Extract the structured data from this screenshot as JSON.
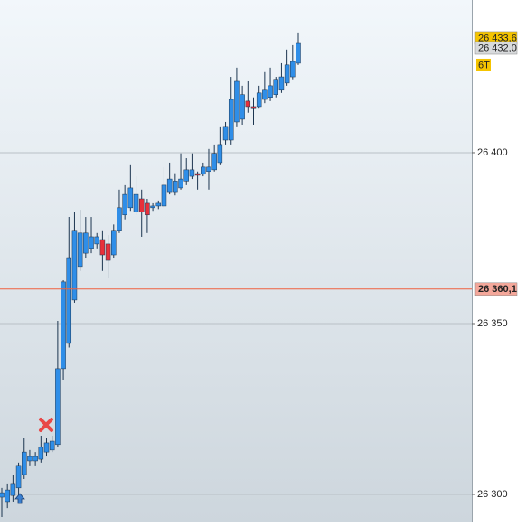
{
  "chart_data": {
    "type": "candlestick",
    "up_color": "#2f8ee8",
    "down_color": "#e8303a",
    "grid": true,
    "ylim": [
      26291.8,
      26444.7
    ],
    "yticks": [
      {
        "value": 26300,
        "label": "26 300"
      },
      {
        "value": 26350,
        "label": "26 350"
      },
      {
        "value": 26400,
        "label": "26 400"
      }
    ],
    "open": [
      26299.2,
      26297.9,
      26299.7,
      26301.9,
      26305.8,
      26309.8,
      26309.8,
      26310.3,
      26312.4,
      26313.0,
      26314.6,
      26336.8,
      26344.2,
      26356.9,
      26366.7,
      26370.6,
      26372.0,
      26373.3,
      26374.6,
      26373.3,
      26370.1,
      26377.3,
      26381.8,
      26383.9,
      26382.6,
      26386.5,
      26385.2,
      26383.9,
      26384.4,
      26384.4,
      26388.6,
      26388.6,
      26389.7,
      26391.7,
      26393.1,
      26393.9,
      26393.7,
      26394.5,
      26395.0,
      26397.1,
      26403.7,
      26403.7,
      26409.0,
      26409.8,
      26415.1,
      26413.5,
      26413.5,
      26415.6,
      26416.2,
      26417.0,
      26418.3,
      26420.4,
      26422.2,
      26426.2
    ],
    "high": [
      26301.9,
      26303.2,
      26305.8,
      26309.3,
      26316.4,
      26313.0,
      26312.4,
      26317.2,
      26316.4,
      26317.2,
      26350.8,
      26362.7,
      26381.2,
      26382.6,
      26383.3,
      26381.2,
      26381.2,
      26376.5,
      26377.3,
      26375.9,
      26379.0,
      26389.2,
      26390.5,
      26396.6,
      26393.1,
      26389.2,
      26386.5,
      26385.2,
      26386.0,
      26395.8,
      26397.1,
      26394.0,
      26399.8,
      26398.4,
      26399.8,
      26394.5,
      26397.1,
      26401.1,
      26402.4,
      26407.7,
      26409.0,
      26422.2,
      26424.9,
      26419.6,
      26420.9,
      26416.2,
      26419.6,
      26423.6,
      26424.9,
      26422.2,
      26426.2,
      26430.2,
      26431.5,
      26435.2
    ],
    "low": [
      26293.4,
      26296.0,
      26297.9,
      26299.7,
      26304.5,
      26308.5,
      26308.5,
      26309.3,
      26311.1,
      26312.4,
      26313.8,
      26333.6,
      26343.0,
      26356.1,
      26365.4,
      26369.3,
      26370.6,
      26372.0,
      26365.4,
      26363.2,
      26369.3,
      26376.5,
      26380.5,
      26383.0,
      26381.8,
      26375.4,
      26376.5,
      26383.0,
      26383.5,
      26383.9,
      26387.8,
      26387.5,
      26389.2,
      26390.5,
      26392.3,
      26389.2,
      26393.1,
      26389.2,
      26394.5,
      26396.6,
      26402.4,
      26402.4,
      26407.7,
      26408.2,
      26411.7,
      26408.2,
      26412.9,
      26414.5,
      26415.1,
      26416.2,
      26417.5,
      26419.6,
      26421.5,
      26425.7
    ],
    "close": [
      26300.5,
      26301.3,
      26303.2,
      26308.5,
      26312.4,
      26311.1,
      26311.1,
      26313.8,
      26315.1,
      26315.6,
      26336.8,
      26362.2,
      26369.3,
      26377.3,
      26376.5,
      26376.5,
      26375.4,
      26375.4,
      26370.1,
      26368.5,
      26377.3,
      26383.9,
      26387.8,
      26389.7,
      26387.8,
      26382.6,
      26381.8,
      26384.4,
      26385.2,
      26390.5,
      26392.3,
      26391.7,
      26392.3,
      26395.0,
      26395.0,
      26393.4,
      26395.8,
      26395.8,
      26399.8,
      26402.4,
      26407.7,
      26415.6,
      26420.9,
      26417.0,
      26413.5,
      26412.9,
      26417.5,
      26418.3,
      26419.6,
      26421.5,
      26422.2,
      26425.7,
      26426.7,
      26432.0
    ],
    "price_markers": [
      {
        "value": 26433.6,
        "label": "26 433,6",
        "color": "#f5c400"
      },
      {
        "value": 26432.0,
        "label": "26 432,0",
        "color": "#d8dadc"
      },
      {
        "value": 26360.1,
        "label": "26 360,1",
        "color": "#f4a79a",
        "line_color": "#f06040"
      }
    ],
    "timer_label": "6T"
  }
}
